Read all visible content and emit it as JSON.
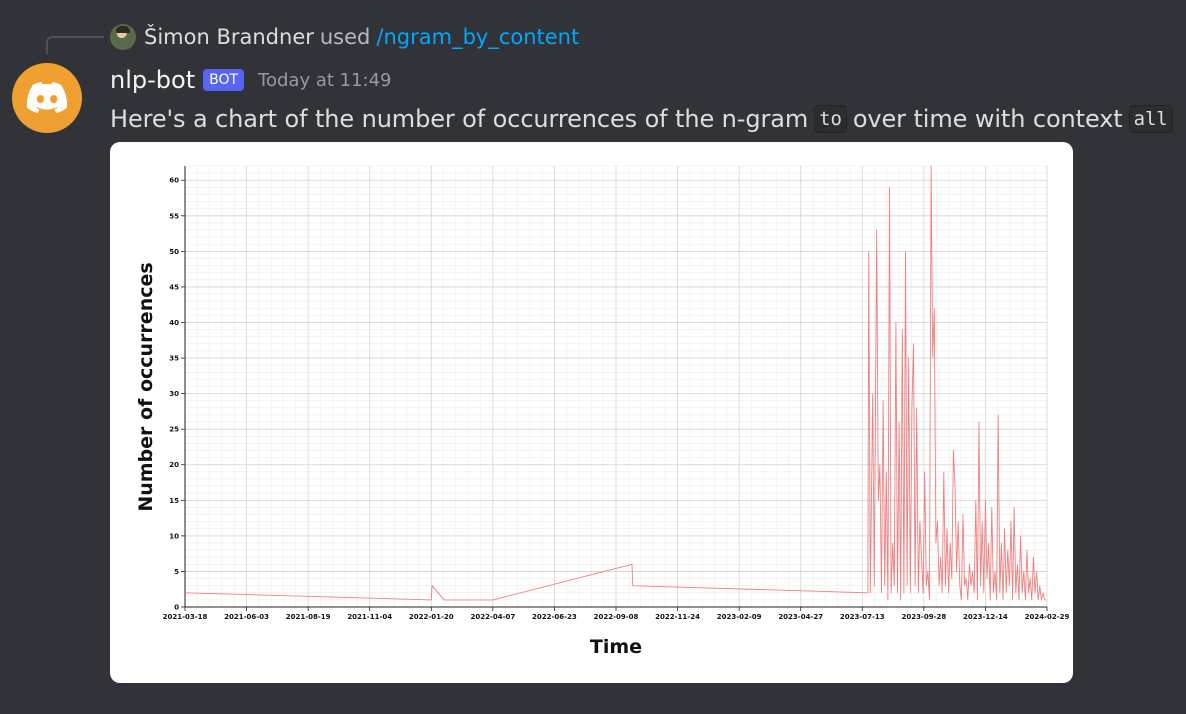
{
  "reply": {
    "author": "Šimon Brandner",
    "used_text": "used",
    "command": "/ngram_by_content"
  },
  "message": {
    "author": "nlp-bot",
    "badge": "BOT",
    "timestamp": "Today at 11:49",
    "text_before": "Here's a chart of the number of occurrences of the n-gram",
    "code_ngram": "to",
    "text_middle": "over time with context",
    "code_context": "all"
  },
  "colors": {
    "background": "#313338",
    "link": "#00a8fc",
    "bot_badge": "#5865f2",
    "avatar": "#f0a030",
    "series_line": "#f08080"
  },
  "icons": {
    "bot_avatar": "discord-logo-icon",
    "reply_avatar": "user-photo-avatar"
  },
  "chart_data": {
    "type": "line",
    "xlabel": "Time",
    "ylabel": "Number of occurrences",
    "ylim": [
      0,
      62
    ],
    "yticks": [
      0,
      5,
      10,
      15,
      20,
      25,
      30,
      35,
      40,
      45,
      50,
      55,
      60
    ],
    "xticks": [
      "2021-03-18",
      "2021-06-03",
      "2021-08-19",
      "2021-11-04",
      "2022-01-20",
      "2022-04-07",
      "2022-06-23",
      "2022-09-08",
      "2022-11-24",
      "2023-02-09",
      "2023-04-27",
      "2023-07-13",
      "2023-09-28",
      "2023-12-14",
      "2024-02-29"
    ],
    "xlim": [
      "2021-03-18",
      "2024-02-29"
    ],
    "grid": true,
    "series": [
      {
        "x": [
          "2021-03-18",
          "2022-01-20",
          "2022-01-21",
          "2022-02-05",
          "2022-04-07",
          "2022-09-28",
          "2022-09-29",
          "2023-07-20",
          "2023-07-21",
          "2023-07-23",
          "2023-07-26",
          "2023-07-28",
          "2023-07-31",
          "2023-08-02",
          "2023-08-04",
          "2023-08-06",
          "2023-08-08",
          "2023-08-10",
          "2023-08-12",
          "2023-08-14",
          "2023-08-16",
          "2023-08-18",
          "2023-08-20",
          "2023-08-22",
          "2023-08-24",
          "2023-08-26",
          "2023-08-28",
          "2023-08-30",
          "2023-09-01",
          "2023-09-03",
          "2023-09-05",
          "2023-09-07",
          "2023-09-09",
          "2023-09-11",
          "2023-09-13",
          "2023-09-15",
          "2023-09-17",
          "2023-09-19",
          "2023-09-21",
          "2023-09-23",
          "2023-09-25",
          "2023-09-27",
          "2023-09-29",
          "2023-10-01",
          "2023-10-03",
          "2023-10-05",
          "2023-10-07",
          "2023-10-09",
          "2023-10-11",
          "2023-10-13",
          "2023-10-15",
          "2023-10-17",
          "2023-10-19",
          "2023-10-21",
          "2023-10-23",
          "2023-10-25",
          "2023-10-27",
          "2023-10-29",
          "2023-10-31",
          "2023-11-02",
          "2023-11-04",
          "2023-11-06",
          "2023-11-08",
          "2023-11-10",
          "2023-11-12",
          "2023-11-14",
          "2023-11-16",
          "2023-11-18",
          "2023-11-20",
          "2023-11-22",
          "2023-11-24",
          "2023-11-26",
          "2023-11-28",
          "2023-11-30",
          "2023-12-02",
          "2023-12-04",
          "2023-12-06",
          "2023-12-08",
          "2023-12-10",
          "2023-12-12",
          "2023-12-14",
          "2023-12-16",
          "2023-12-18",
          "2023-12-20",
          "2023-12-22",
          "2023-12-24",
          "2023-12-26",
          "2023-12-28",
          "2023-12-30",
          "2024-01-01",
          "2024-01-03",
          "2024-01-05",
          "2024-01-07",
          "2024-01-09",
          "2024-01-11",
          "2024-01-13",
          "2024-01-15",
          "2024-01-17",
          "2024-01-19",
          "2024-01-21",
          "2024-01-23",
          "2024-01-25",
          "2024-01-27",
          "2024-01-29",
          "2024-01-31",
          "2024-02-02",
          "2024-02-04",
          "2024-02-06",
          "2024-02-08",
          "2024-02-10",
          "2024-02-12",
          "2024-02-14",
          "2024-02-16",
          "2024-02-18",
          "2024-02-20",
          "2024-02-22",
          "2024-02-24",
          "2024-02-26",
          "2024-02-28"
        ],
        "y": [
          2,
          1,
          3,
          1,
          1,
          6,
          3,
          2,
          50,
          2,
          30,
          3,
          53,
          15,
          20,
          2,
          29,
          3,
          19,
          1,
          59,
          2,
          9,
          3,
          40,
          2,
          26,
          1,
          39,
          2,
          50,
          3,
          35,
          2,
          28,
          37,
          3,
          28,
          2,
          12,
          7,
          2,
          19,
          3,
          5,
          1,
          62,
          35,
          42,
          9,
          12,
          3,
          7,
          2,
          19,
          3,
          11,
          2,
          9,
          4,
          22,
          17,
          5,
          12,
          3,
          1,
          13,
          3,
          4,
          1,
          6,
          3,
          5,
          2,
          15,
          1,
          26,
          3,
          12,
          2,
          15,
          4,
          9,
          1,
          14,
          2,
          5,
          1,
          27,
          2,
          9,
          1,
          11,
          2,
          8,
          3,
          12,
          1,
          14,
          2,
          6,
          1,
          10,
          2,
          5,
          1,
          8,
          2,
          4,
          1,
          7,
          2,
          5,
          1,
          3,
          1,
          2,
          1,
          1
        ]
      }
    ]
  }
}
